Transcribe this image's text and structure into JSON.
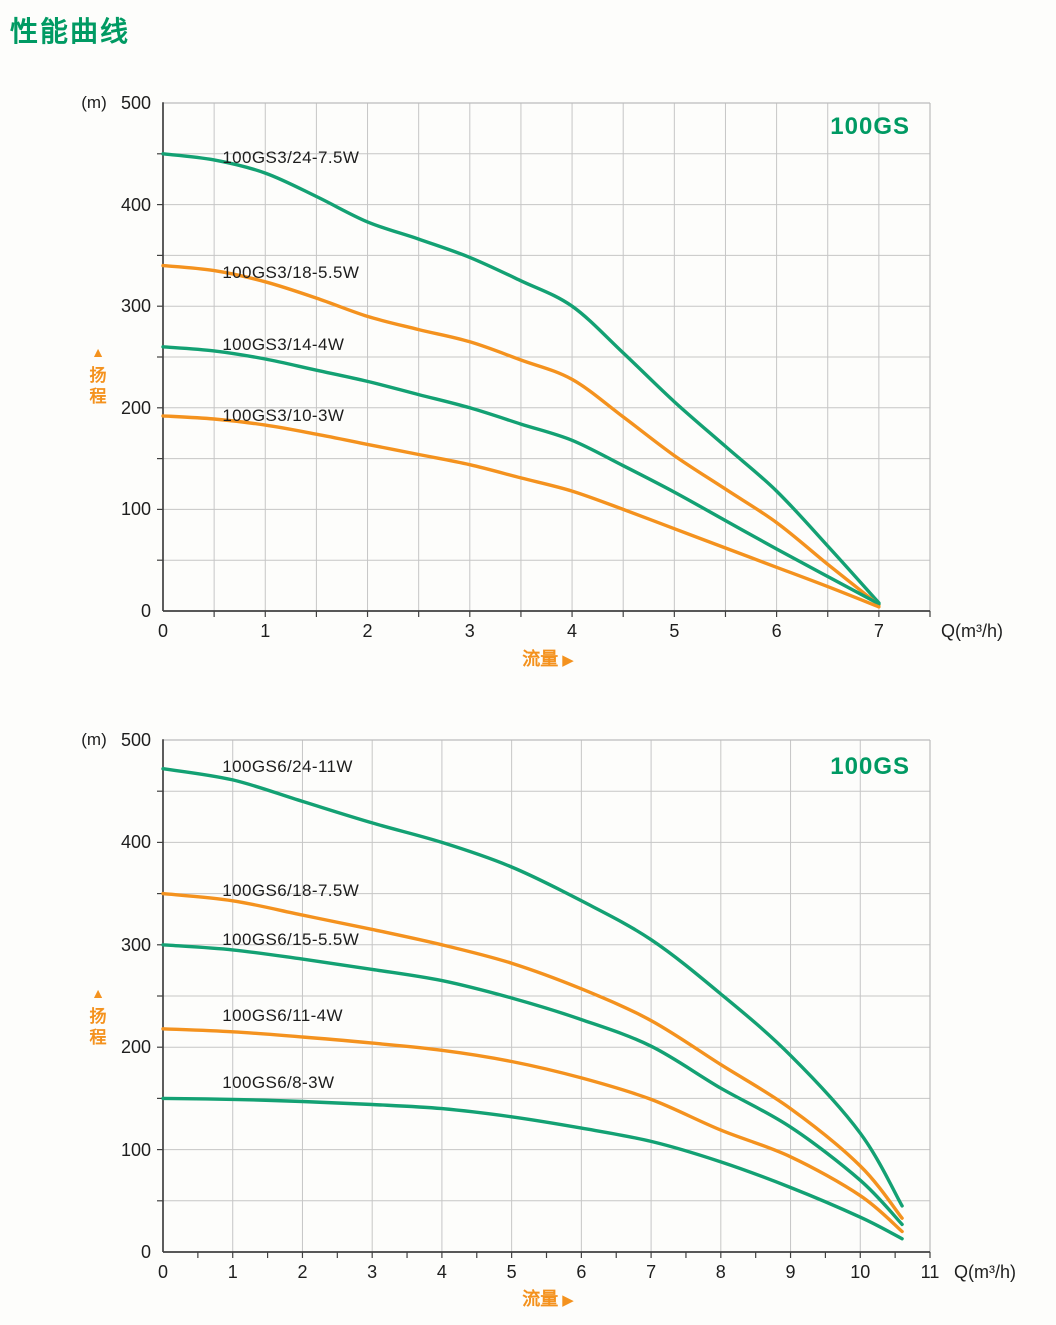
{
  "page": {
    "title": "性能曲线"
  },
  "colors": {
    "title_green": "#009A63",
    "badge_green": "#009A63",
    "curve_green": "#13A173",
    "curve_orange": "#F4921E",
    "accent_orange": "#F4921E",
    "grid": "#C6C6C6",
    "axis_dark": "#404040",
    "axis_light": "#BCBCBC",
    "text": "#1D1D1D"
  },
  "chart_data": [
    {
      "type": "line",
      "badge": "100GS",
      "y_unit_label": "(m)",
      "x_unit_label": "Q(m³/h)",
      "x_axis_title": "流量",
      "x_axis_arrow": "▶",
      "y_axis_title": "扬程",
      "y_axis_arrow": "▲",
      "xlim": [
        0,
        7.5
      ],
      "ylim": [
        0,
        500
      ],
      "x_major_ticks": [
        0,
        1,
        2,
        3,
        4,
        5,
        6,
        7
      ],
      "y_major_ticks": [
        0,
        100,
        200,
        300,
        400,
        500
      ],
      "x_grid_step": 0.5,
      "y_grid_step": 50,
      "x_minor_tick_step": 0.5,
      "y_minor_tick_step": 50,
      "grid": true,
      "legend_position": "inline-labels",
      "series": [
        {
          "name": "100GS3/24-7.5W",
          "color": "green",
          "label_pos": [
            0.58,
            456
          ],
          "points": [
            [
              0,
              450
            ],
            [
              0.5,
              444
            ],
            [
              1,
              431
            ],
            [
              1.5,
              408
            ],
            [
              2,
              383
            ],
            [
              2.5,
              366
            ],
            [
              3,
              348
            ],
            [
              3.5,
              325
            ],
            [
              4,
              300
            ],
            [
              4.5,
              254
            ],
            [
              5,
              206
            ],
            [
              5.5,
              162
            ],
            [
              6,
              118
            ],
            [
              6.5,
              64
            ],
            [
              7,
              8
            ]
          ]
        },
        {
          "name": "100GS3/18-5.5W",
          "color": "orange",
          "label_pos": [
            0.58,
            343
          ],
          "points": [
            [
              0,
              340
            ],
            [
              0.5,
              335
            ],
            [
              1,
              324
            ],
            [
              1.5,
              308
            ],
            [
              2,
              290
            ],
            [
              2.5,
              277
            ],
            [
              3,
              265
            ],
            [
              3.5,
              247
            ],
            [
              4,
              228
            ],
            [
              4.5,
              191
            ],
            [
              5,
              153
            ],
            [
              5.5,
              120
            ],
            [
              6,
              87
            ],
            [
              6.5,
              46
            ],
            [
              7,
              6
            ]
          ]
        },
        {
          "name": "100GS3/14-4W",
          "color": "green",
          "label_pos": [
            0.58,
            272
          ],
          "points": [
            [
              0,
              260
            ],
            [
              0.5,
              256
            ],
            [
              1,
              248
            ],
            [
              1.5,
              237
            ],
            [
              2,
              226
            ],
            [
              2.5,
              213
            ],
            [
              3,
              200
            ],
            [
              3.5,
              184
            ],
            [
              4,
              168
            ],
            [
              4.5,
              143
            ],
            [
              5,
              117
            ],
            [
              5.5,
              89
            ],
            [
              6,
              61
            ],
            [
              6.5,
              34
            ],
            [
              7,
              7
            ]
          ]
        },
        {
          "name": "100GS3/10-3W",
          "color": "orange",
          "label_pos": [
            0.58,
            202
          ],
          "points": [
            [
              0,
              192
            ],
            [
              0.5,
              189
            ],
            [
              1,
              183
            ],
            [
              1.5,
              174
            ],
            [
              2,
              164
            ],
            [
              2.5,
              154
            ],
            [
              3,
              144
            ],
            [
              3.5,
              131
            ],
            [
              4,
              118
            ],
            [
              4.5,
              100
            ],
            [
              5,
              81
            ],
            [
              5.5,
              62
            ],
            [
              6,
              43
            ],
            [
              6.5,
              24
            ],
            [
              7,
              4
            ]
          ]
        }
      ]
    },
    {
      "type": "line",
      "badge": "100GS",
      "y_unit_label": "(m)",
      "x_unit_label": "Q(m³/h)",
      "x_axis_title": "流量",
      "x_axis_arrow": "▶",
      "y_axis_title": "扬程",
      "y_axis_arrow": "▲",
      "xlim": [
        0,
        11
      ],
      "ylim": [
        0,
        500
      ],
      "x_major_ticks": [
        0,
        1,
        2,
        3,
        4,
        5,
        6,
        7,
        8,
        9,
        10,
        11
      ],
      "y_major_ticks": [
        0,
        100,
        200,
        300,
        400,
        500
      ],
      "x_grid_step": 1,
      "y_grid_step": 50,
      "x_minor_tick_step": 0.5,
      "y_minor_tick_step": 50,
      "grid": true,
      "legend_position": "inline-labels",
      "series": [
        {
          "name": "100GS6/24-11W",
          "color": "green",
          "label_pos": [
            0.85,
            483
          ],
          "points": [
            [
              0,
              472
            ],
            [
              1,
              461
            ],
            [
              2,
              440
            ],
            [
              3,
              419
            ],
            [
              4,
              400
            ],
            [
              5,
              376
            ],
            [
              6,
              343
            ],
            [
              7,
              305
            ],
            [
              8,
              252
            ],
            [
              9,
              192
            ],
            [
              10,
              116
            ],
            [
              10.6,
              45
            ]
          ]
        },
        {
          "name": "100GS6/18-7.5W",
          "color": "orange",
          "label_pos": [
            0.85,
            362
          ],
          "points": [
            [
              0,
              350
            ],
            [
              1,
              343
            ],
            [
              2,
              329
            ],
            [
              3,
              315
            ],
            [
              4,
              300
            ],
            [
              5,
              282
            ],
            [
              6,
              257
            ],
            [
              7,
              226
            ],
            [
              8,
              183
            ],
            [
              9,
              140
            ],
            [
              10,
              84
            ],
            [
              10.6,
              33
            ]
          ]
        },
        {
          "name": "100GS6/15-5.5W",
          "color": "green",
          "label_pos": [
            0.85,
            314
          ],
          "points": [
            [
              0,
              300
            ],
            [
              1,
              295
            ],
            [
              2,
              286
            ],
            [
              3,
              276
            ],
            [
              4,
              265
            ],
            [
              5,
              248
            ],
            [
              6,
              227
            ],
            [
              7,
              201
            ],
            [
              8,
              160
            ],
            [
              9,
              122
            ],
            [
              10,
              70
            ],
            [
              10.6,
              27
            ]
          ]
        },
        {
          "name": "100GS6/11-4W",
          "color": "orange",
          "label_pos": [
            0.85,
            240
          ],
          "points": [
            [
              0,
              218
            ],
            [
              1,
              215
            ],
            [
              2,
              210
            ],
            [
              3,
              204
            ],
            [
              4,
              197
            ],
            [
              5,
              186
            ],
            [
              6,
              170
            ],
            [
              7,
              149
            ],
            [
              8,
              119
            ],
            [
              9,
              93
            ],
            [
              10,
              55
            ],
            [
              10.6,
              20
            ]
          ]
        },
        {
          "name": "100GS6/8-3W",
          "color": "green",
          "label_pos": [
            0.85,
            175
          ],
          "points": [
            [
              0,
              150
            ],
            [
              1,
              149
            ],
            [
              2,
              147
            ],
            [
              3,
              144
            ],
            [
              4,
              140
            ],
            [
              5,
              132
            ],
            [
              6,
              121
            ],
            [
              7,
              108
            ],
            [
              8,
              88
            ],
            [
              9,
              63
            ],
            [
              10,
              34
            ],
            [
              10.6,
              13
            ]
          ]
        }
      ]
    }
  ]
}
